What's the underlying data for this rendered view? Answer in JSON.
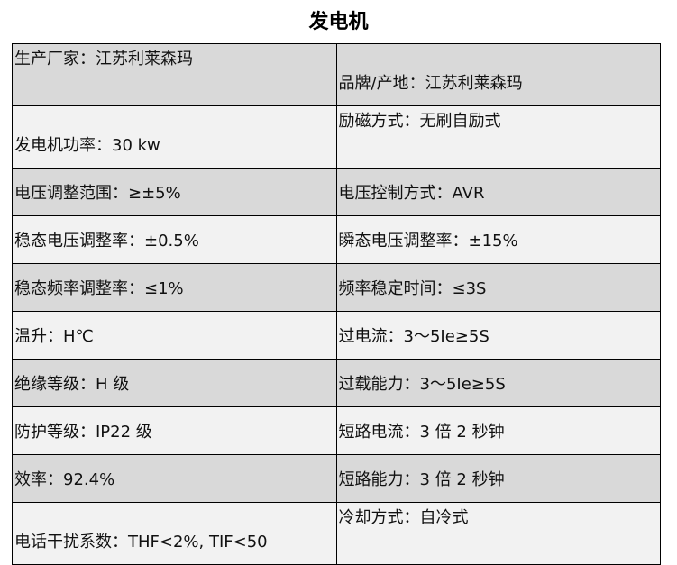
{
  "title": "发电机",
  "rows": [
    [
      "生产厂家：江苏利莱森玛",
      "品牌/产地：江苏利莱森玛"
    ],
    [
      "发电机功率：30 kw",
      "励磁方式：无刷自励式"
    ],
    [
      "电压调整范围：≥±5%",
      "电压控制方式：AVR"
    ],
    [
      "稳态电压调整率：±0.5%",
      "瞬态电压调整率：±15%"
    ],
    [
      "稳态频率调整率：≤1%",
      "频率稳定时间：≤3S"
    ],
    [
      "温升：H℃",
      "过电流：3～5Ie≥5S"
    ],
    [
      "绝缘等级：H 级",
      "过载能力：3～5Ie≥5S"
    ],
    [
      "防护等级：IP22 级",
      "短路电流：3 倍 2 秒钟"
    ],
    [
      "效率：92.4%",
      "短路能力：3 倍 2 秒钟"
    ],
    [
      "电话干扰系数：THF<2%, TIF<50",
      "冷却方式：自冷式"
    ]
  ]
}
